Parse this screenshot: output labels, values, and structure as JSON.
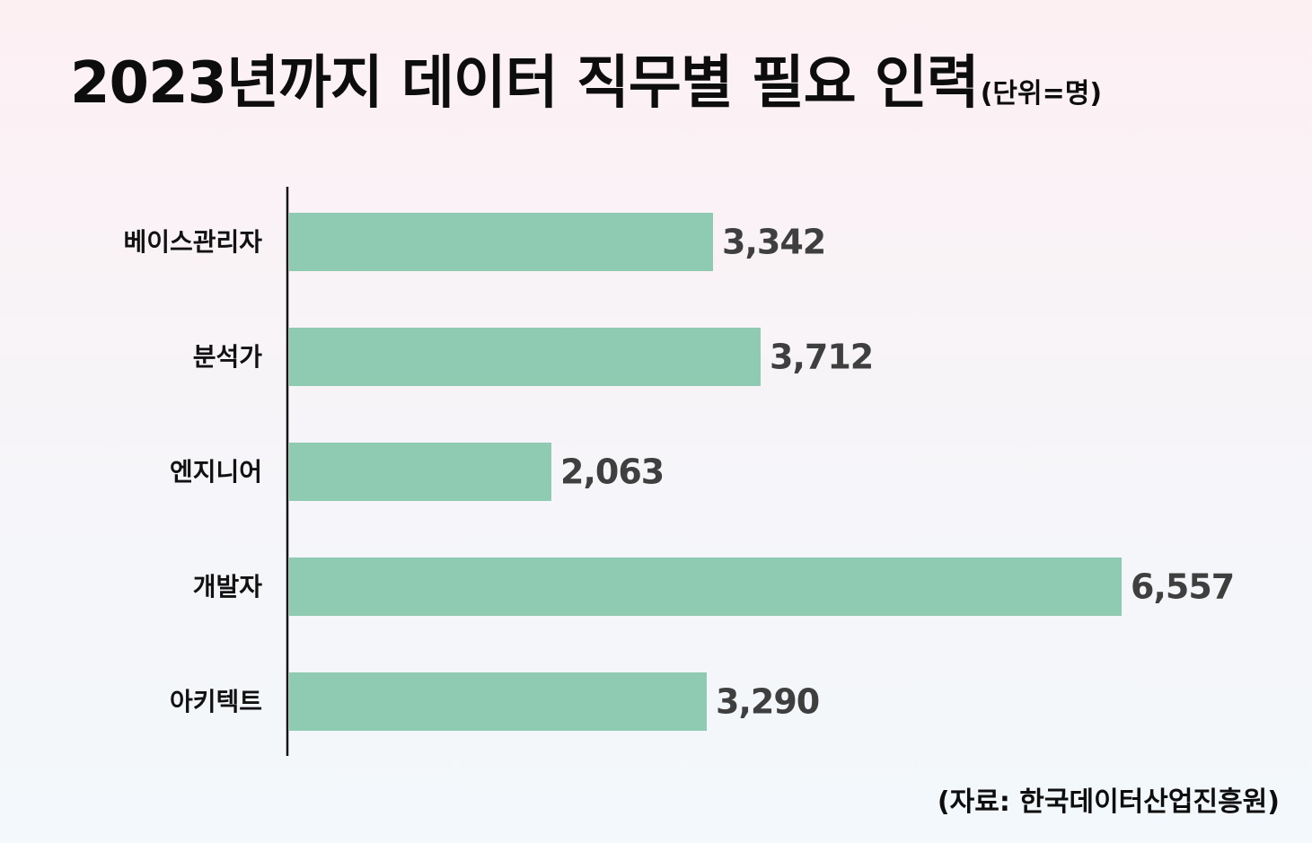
{
  "header": {
    "title": "2023년까지 데이터 직무별 필요 인력",
    "unit": "(단위=명)"
  },
  "footer": {
    "source": "(자료: 한국데이터산업진흥원)"
  },
  "colors": {
    "bar": "#8ecbb2",
    "axis": "#111111",
    "value_text": "#3f3f3f"
  },
  "chart_data": {
    "type": "bar",
    "orientation": "horizontal",
    "categories": [
      "베이스관리자",
      "분석가",
      "엔지니어",
      "개발자",
      "아키텍트"
    ],
    "values": [
      3342,
      3712,
      2063,
      6557,
      3290
    ],
    "value_labels": [
      "3,342",
      "3,712",
      "2,063",
      "6,557",
      "3,290"
    ],
    "title": "2023년까지 데이터 직무별 필요 인력",
    "xlabel": "",
    "ylabel": "",
    "xlim": [
      0,
      6557
    ],
    "grid": false,
    "legend": "none"
  }
}
